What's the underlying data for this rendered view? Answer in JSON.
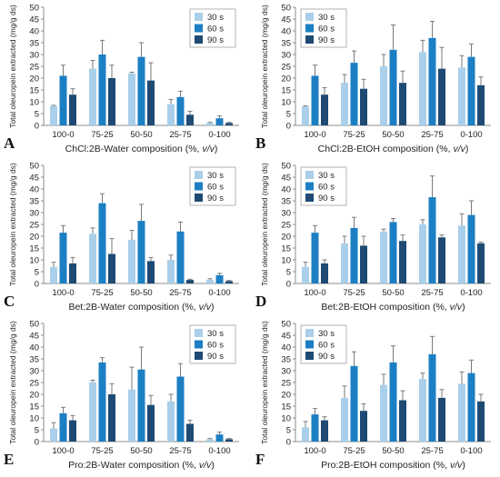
{
  "colors": {
    "s30": "#A9CFEA",
    "s60": "#1C7FC4",
    "s90": "#1E4A73",
    "error": "#7a7a7a",
    "axis": "#8c8c8c"
  },
  "panels": [
    {
      "letter": "A",
      "xlabel": "ChCl:2B-Water composition (%, v/v)"
    },
    {
      "letter": "B",
      "xlabel": "ChCl:2B-EtOH composition (%, v/v)"
    },
    {
      "letter": "C",
      "xlabel": "Bet:2B-Water composition (%, v/v)"
    },
    {
      "letter": "D",
      "xlabel": "Bet:2B-EtOH composition (%, v/v)"
    },
    {
      "letter": "E",
      "xlabel": "Pro:2B-Water composition (%, v/v)"
    },
    {
      "letter": "F",
      "xlabel": "Pro:2B-EtOH composition (%, v/v)"
    }
  ],
  "chart_data": [
    {
      "type": "bar",
      "ylabel": "Total oleuropein extracted (mg/g ds)",
      "xlabel": "ChCl:2B-Water composition (%, v/v)",
      "categories": [
        "100-0",
        "75-25",
        "50-50",
        "25-75",
        "0-100"
      ],
      "ylim": [
        0,
        50
      ],
      "yticks": [
        0,
        5,
        10,
        15,
        20,
        25,
        30,
        35,
        40,
        45,
        50
      ],
      "legend": "top-right",
      "series": [
        {
          "name": "30 s",
          "values": [
            8.2,
            24,
            22,
            9,
            1
          ],
          "errors": [
            0.3,
            3.5,
            0.5,
            2,
            0.3
          ]
        },
        {
          "name": "60 s",
          "values": [
            21,
            30,
            29,
            12,
            3
          ],
          "errors": [
            4.5,
            6,
            6,
            2.5,
            1
          ]
        },
        {
          "name": "90 s",
          "values": [
            13,
            20,
            19,
            4.5,
            1
          ],
          "errors": [
            2.5,
            5.5,
            7.5,
            1.5,
            0.3
          ]
        }
      ]
    },
    {
      "type": "bar",
      "ylabel": "Total oleuropein extracted (mg/g ds)",
      "xlabel": "ChCl:2B-EtOH composition (%, v/v)",
      "categories": [
        "100-0",
        "75-25",
        "50-50",
        "25-75",
        "0-100"
      ],
      "ylim": [
        0,
        50
      ],
      "yticks": [
        0,
        5,
        10,
        15,
        20,
        25,
        30,
        35,
        40,
        45,
        50
      ],
      "legend": "top-left",
      "series": [
        {
          "name": "30 s",
          "values": [
            8,
            18,
            25,
            31,
            24.5
          ],
          "errors": [
            0.3,
            3.5,
            5,
            5,
            5
          ]
        },
        {
          "name": "60 s",
          "values": [
            21,
            26.5,
            32,
            37,
            29
          ],
          "errors": [
            4.5,
            5,
            10.5,
            7,
            5.5
          ]
        },
        {
          "name": "90 s",
          "values": [
            13,
            15.5,
            18,
            24,
            17
          ],
          "errors": [
            3,
            4,
            5,
            9,
            3.5
          ]
        }
      ]
    },
    {
      "type": "bar",
      "ylabel": "Total oleuropein extracted (mg/g ds)",
      "xlabel": "Bet:2B-Water composition (%, v/v)",
      "categories": [
        "100-0",
        "75-25",
        "50-50",
        "25-75",
        "0-100"
      ],
      "ylim": [
        0,
        50
      ],
      "yticks": [
        0,
        5,
        10,
        15,
        20,
        25,
        30,
        35,
        40,
        45,
        50
      ],
      "legend": "top-right",
      "series": [
        {
          "name": "30 s",
          "values": [
            7,
            21,
            18.5,
            10,
            1.5
          ],
          "errors": [
            2,
            2.5,
            4,
            2,
            0.5
          ]
        },
        {
          "name": "60 s",
          "values": [
            21.5,
            34,
            26.5,
            22,
            3.5
          ],
          "errors": [
            3,
            4,
            7,
            4,
            0.8
          ]
        },
        {
          "name": "90 s",
          "values": [
            8.5,
            12.5,
            9.5,
            1.5,
            1
          ],
          "errors": [
            2.5,
            6.5,
            1.5,
            0.3,
            0.3
          ]
        }
      ]
    },
    {
      "type": "bar",
      "ylabel": "Total oleuropein extracted (mg/g ds)",
      "xlabel": "Bet:2B-EtOH composition (%, v/v)",
      "categories": [
        "100-0",
        "75-25",
        "50-50",
        "25-75",
        "0-100"
      ],
      "ylim": [
        0,
        50
      ],
      "yticks": [
        0,
        5,
        10,
        15,
        20,
        25,
        30,
        35,
        40,
        45,
        50
      ],
      "legend": "top-left",
      "series": [
        {
          "name": "30 s",
          "values": [
            7,
            17,
            22,
            25,
            24.5
          ],
          "errors": [
            2,
            3,
            1,
            2,
            5
          ]
        },
        {
          "name": "60 s",
          "values": [
            21.5,
            23.5,
            26,
            36.5,
            29
          ],
          "errors": [
            3,
            4.5,
            1.5,
            9,
            6
          ]
        },
        {
          "name": "90 s",
          "values": [
            8.5,
            16,
            18,
            19.5,
            17
          ],
          "errors": [
            1.5,
            4,
            2.5,
            1,
            0.5
          ]
        }
      ]
    },
    {
      "type": "bar",
      "ylabel": "Total oleuropein extracted (mg/g ds)",
      "xlabel": "Pro:2B-Water composition (%, v/v)",
      "categories": [
        "100-0",
        "75-25",
        "50-50",
        "25-75",
        "0-100"
      ],
      "ylim": [
        0,
        50
      ],
      "yticks": [
        0,
        5,
        10,
        15,
        20,
        25,
        30,
        35,
        40,
        45,
        50
      ],
      "legend": "top-right",
      "series": [
        {
          "name": "30 s",
          "values": [
            5.5,
            25,
            22,
            17,
            1
          ],
          "errors": [
            2.5,
            1,
            9.5,
            3,
            0.3
          ]
        },
        {
          "name": "60 s",
          "values": [
            12,
            33.5,
            30.5,
            27.5,
            3
          ],
          "errors": [
            2.5,
            2,
            9.5,
            5.5,
            1
          ]
        },
        {
          "name": "90 s",
          "values": [
            9,
            20,
            15.5,
            7.5,
            1
          ],
          "errors": [
            2,
            4.5,
            4,
            1.5,
            0.3
          ]
        }
      ]
    },
    {
      "type": "bar",
      "ylabel": "Total oleuropein extracted (mg/g ds)",
      "xlabel": "Pro:2B-EtOH composition (%, v/v)",
      "categories": [
        "100-0",
        "75-25",
        "50-50",
        "25-75",
        "0-100"
      ],
      "ylim": [
        0,
        50
      ],
      "yticks": [
        0,
        5,
        10,
        15,
        20,
        25,
        30,
        35,
        40,
        45,
        50
      ],
      "legend": "top-left",
      "series": [
        {
          "name": "30 s",
          "values": [
            6,
            18.5,
            24,
            26.5,
            24.5
          ],
          "errors": [
            2.5,
            5,
            4.5,
            2.5,
            5
          ]
        },
        {
          "name": "60 s",
          "values": [
            11.5,
            32,
            33.5,
            37,
            29
          ],
          "errors": [
            2.5,
            6,
            7,
            7.5,
            5.5
          ]
        },
        {
          "name": "90 s",
          "values": [
            9,
            13,
            17.5,
            18.5,
            17
          ],
          "errors": [
            1.5,
            3,
            4,
            3.5,
            3
          ]
        }
      ]
    }
  ]
}
